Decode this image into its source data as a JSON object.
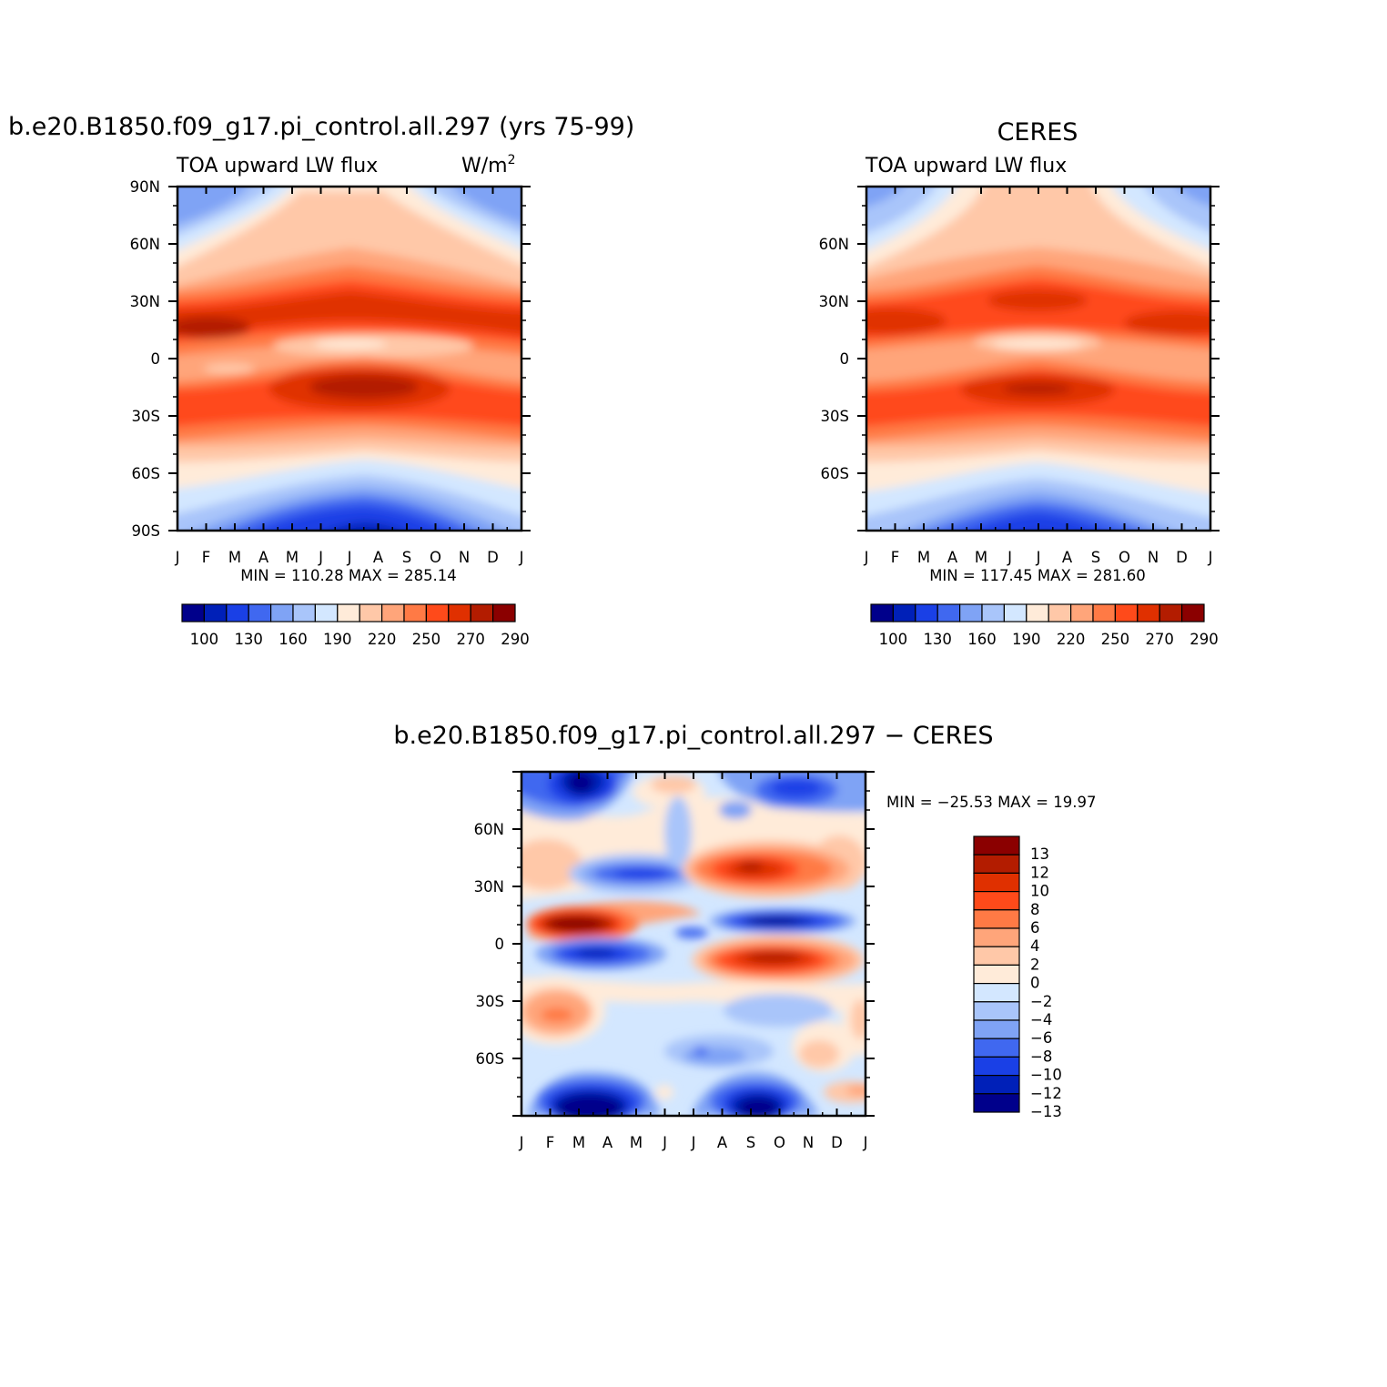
{
  "palettes": {
    "abs": [
      "#00008b",
      "#0020b8",
      "#1a40e6",
      "#4068f0",
      "#7fa3f5",
      "#a9c5fa",
      "#d3e7ff",
      "#ffebd9",
      "#ffc8a8",
      "#ffa57a",
      "#ff7a45",
      "#ff4a1a",
      "#e03000",
      "#b31c00",
      "#8b0000"
    ],
    "diff": [
      "#00008b",
      "#0020b8",
      "#1a40e6",
      "#4068f0",
      "#7fa3f5",
      "#a9c5fa",
      "#d3e7ff",
      "#ffebd9",
      "#ffc8a8",
      "#ffa57a",
      "#ff7a45",
      "#ff4a1a",
      "#e03000",
      "#b31c00",
      "#8b0000"
    ]
  },
  "chart_data": [
    {
      "type": "heatmap",
      "title": "b.e20.B1850.f09_g17.pi_control.all.297 (yrs 75-99)",
      "left_label": "TOA upward LW flux",
      "right_label": "W/m",
      "right_label_sup": "2",
      "x_ticks": [
        "J",
        "F",
        "M",
        "A",
        "M",
        "J",
        "J",
        "A",
        "S",
        "O",
        "N",
        "D",
        "J"
      ],
      "y_ticks": [
        "90N",
        "60N",
        "30N",
        "0",
        "30S",
        "60S",
        "90S"
      ],
      "y_tick_values": [
        90,
        60,
        30,
        0,
        -30,
        -60,
        -90
      ],
      "ylim": [
        -90,
        90
      ],
      "stats": "MIN =  110.28 MAX =  285.14",
      "min": 110.28,
      "max": 285.14,
      "colorbar_labels": [
        "100",
        "130",
        "160",
        "190",
        "220",
        "250",
        "270",
        "290"
      ],
      "colorbar_levels": [
        100,
        115,
        130,
        145,
        160,
        175,
        190,
        205,
        220,
        235,
        250,
        260,
        270,
        280,
        290
      ],
      "grid": false,
      "legend_placement": "bottom"
    },
    {
      "type": "heatmap",
      "title": "CERES",
      "left_label": "TOA upward LW flux",
      "x_ticks": [
        "J",
        "F",
        "M",
        "A",
        "M",
        "J",
        "J",
        "A",
        "S",
        "O",
        "N",
        "D",
        "J"
      ],
      "y_ticks": [
        "60N",
        "30N",
        "0",
        "30S",
        "60S"
      ],
      "y_tick_values": [
        60,
        30,
        0,
        -30,
        -60
      ],
      "ylim": [
        -90,
        90
      ],
      "stats": "MIN =  117.45 MAX =  281.60",
      "min": 117.45,
      "max": 281.6,
      "colorbar_labels": [
        "100",
        "130",
        "160",
        "190",
        "220",
        "250",
        "270",
        "290"
      ],
      "colorbar_levels": [
        100,
        115,
        130,
        145,
        160,
        175,
        190,
        205,
        220,
        235,
        250,
        260,
        270,
        280,
        290
      ],
      "grid": false,
      "legend_placement": "bottom"
    },
    {
      "type": "heatmap",
      "title": "b.e20.B1850.f09_g17.pi_control.all.297 − CERES",
      "x_ticks": [
        "J",
        "F",
        "M",
        "A",
        "M",
        "J",
        "J",
        "A",
        "S",
        "O",
        "N",
        "D",
        "J"
      ],
      "y_ticks": [
        "60N",
        "30N",
        "0",
        "30S",
        "60S"
      ],
      "y_tick_values": [
        60,
        30,
        0,
        -30,
        -60
      ],
      "ylim": [
        -90,
        90
      ],
      "stats": "MIN = −25.53 MAX =   19.97",
      "min": -25.53,
      "max": 19.97,
      "colorbar_labels": [
        "13",
        "12",
        "10",
        "8",
        "6",
        "4",
        "2",
        "0",
        "−2",
        "−4",
        "−6",
        "−8",
        "−10",
        "−12",
        "−13"
      ],
      "grid": false,
      "legend_placement": "right"
    }
  ]
}
